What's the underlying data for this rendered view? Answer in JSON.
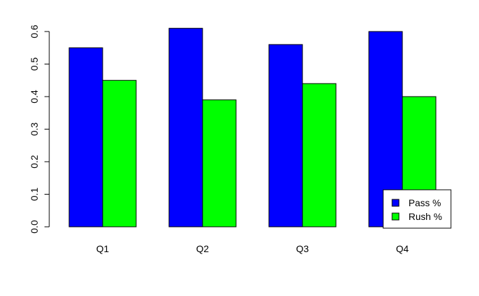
{
  "chart_data": {
    "type": "bar",
    "categories": [
      "Q1",
      "Q2",
      "Q3",
      "Q4"
    ],
    "series": [
      {
        "name": "Pass %",
        "color": "#0000ff",
        "values": [
          0.55,
          0.61,
          0.56,
          0.6
        ]
      },
      {
        "name": "Rush %",
        "color": "#00ff00",
        "values": [
          0.45,
          0.39,
          0.44,
          0.4
        ]
      }
    ],
    "yticks": [
      "0.0",
      "0.1",
      "0.2",
      "0.3",
      "0.4",
      "0.5",
      "0.6"
    ],
    "ylim": [
      0,
      0.6
    ],
    "title": "",
    "xlabel": "",
    "ylabel": "",
    "grid": false,
    "legend": "bottom-right"
  }
}
